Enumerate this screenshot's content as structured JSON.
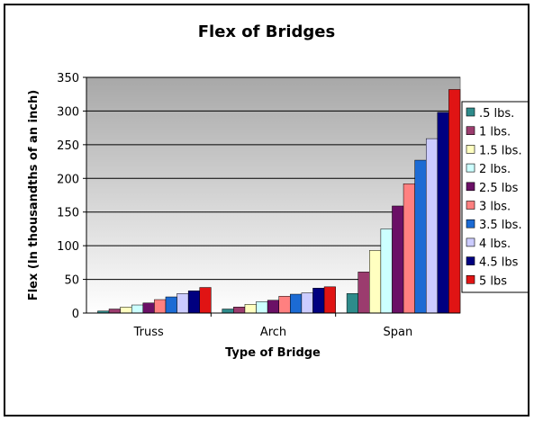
{
  "chart_data": {
    "type": "bar",
    "title": "Flex of Bridges",
    "xlabel": "Type of Bridge",
    "ylabel": "Flex (In thousandths of an inch)",
    "categories": [
      "Truss",
      "Arch",
      "Span"
    ],
    "ylim": [
      0,
      350
    ],
    "yticks": [
      0,
      50,
      100,
      150,
      200,
      250,
      300,
      350
    ],
    "grid": true,
    "legend_position": "right",
    "plot_background": "gray-to-white gradient",
    "series": [
      {
        "name": ".5 lbs.",
        "color": "#2E8B8B",
        "values": [
          3,
          6,
          29
        ]
      },
      {
        "name": "1 lbs.",
        "color": "#9B3C6E",
        "values": [
          6,
          9,
          61
        ]
      },
      {
        "name": "1.5 lbs.",
        "color": "#FFFFC0",
        "values": [
          9,
          13,
          93
        ]
      },
      {
        "name": "2 lbs.",
        "color": "#CCFFFF",
        "values": [
          12,
          17,
          125
        ]
      },
      {
        "name": "2.5 lbs",
        "color": "#6B1066",
        "values": [
          15,
          19,
          159
        ]
      },
      {
        "name": "3 lbs.",
        "color": "#FF8080",
        "values": [
          20,
          25,
          192
        ]
      },
      {
        "name": "3.5 lbs.",
        "color": "#1C6BD4",
        "values": [
          24,
          28,
          227
        ]
      },
      {
        "name": "4 lbs.",
        "color": "#CCCCFF",
        "values": [
          29,
          30,
          259
        ]
      },
      {
        "name": "4.5 lbs",
        "color": "#000080",
        "values": [
          33,
          37,
          298
        ]
      },
      {
        "name": "5 lbs",
        "color": "#E01414",
        "values": [
          38,
          39,
          332
        ]
      }
    ]
  }
}
